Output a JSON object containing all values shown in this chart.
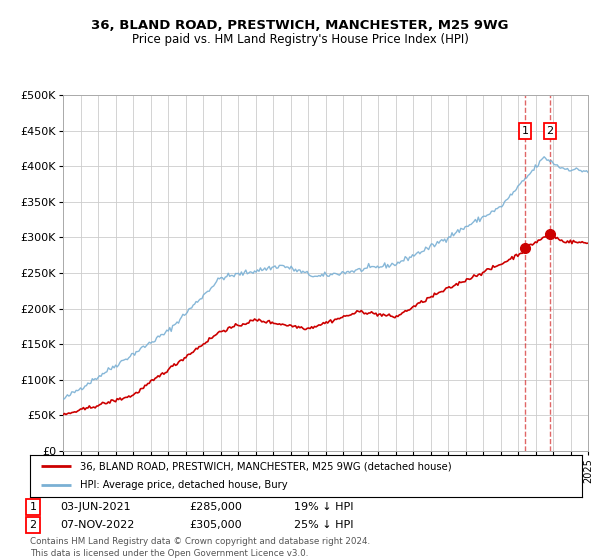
{
  "title": "36, BLAND ROAD, PRESTWICH, MANCHESTER, M25 9WG",
  "subtitle": "Price paid vs. HM Land Registry's House Price Index (HPI)",
  "legend_line1": "36, BLAND ROAD, PRESTWICH, MANCHESTER, M25 9WG (detached house)",
  "legend_line2": "HPI: Average price, detached house, Bury",
  "footer": "Contains HM Land Registry data © Crown copyright and database right 2024.\nThis data is licensed under the Open Government Licence v3.0.",
  "annotation1": {
    "label": "1",
    "date": "03-JUN-2021",
    "price": "£285,000",
    "pct": "19% ↓ HPI"
  },
  "annotation2": {
    "label": "2",
    "date": "07-NOV-2022",
    "price": "£305,000",
    "pct": "25% ↓ HPI"
  },
  "line_color_red": "#cc0000",
  "line_color_blue": "#7ab0d4",
  "grid_color": "#cccccc",
  "background_color": "#ffffff",
  "ylim": [
    0,
    500000
  ],
  "yticks": [
    0,
    50000,
    100000,
    150000,
    200000,
    250000,
    300000,
    350000,
    400000,
    450000,
    500000
  ],
  "sale1_t": 2021.417,
  "sale2_t": 2022.833,
  "sale1_price": 285000,
  "sale2_price": 305000
}
